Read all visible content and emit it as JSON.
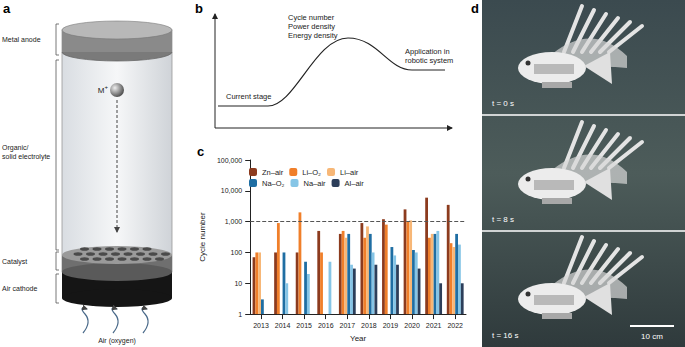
{
  "panel_a": {
    "panel_label": "a",
    "labels": {
      "anode": "Metal anode",
      "electrolyte": [
        "Organic/",
        "solid electrolyte"
      ],
      "catalyst": "Catalyst",
      "cathode": "Air cathode",
      "ion": "M",
      "ion_charge": "+",
      "air": "Air (oxygen)"
    }
  },
  "panel_b": {
    "panel_label": "b",
    "labels": {
      "start": "Current stage",
      "peak": [
        "Cycle number",
        "Power density",
        "Energy density"
      ],
      "end": [
        "Application in",
        "robotic system"
      ]
    }
  },
  "chart_data": {
    "type": "bar",
    "panel_label": "c",
    "x_label": "Year",
    "y_label": "Cycle number",
    "categories": [
      "2013",
      "2014",
      "2015",
      "2016",
      "2017",
      "2018",
      "2019",
      "2020",
      "2021",
      "2022"
    ],
    "log": "y",
    "ylim": [
      1,
      100000
    ],
    "yticks": [
      1,
      10,
      100,
      {
        "value": 1000,
        "label": "1,000"
      },
      {
        "value": 10000,
        "label": "10,000"
      },
      {
        "value": 100000,
        "label": "100,000"
      }
    ],
    "grid": false,
    "legend": "top left",
    "reference_line": 1000,
    "series": [
      {
        "name": "Zn–air",
        "color": "#8c3b1e",
        "values": [
          70,
          100,
          100,
          500,
          400,
          900,
          1200,
          2500,
          6000,
          3500
        ]
      },
      {
        "name": "Li–O₂",
        "color": "#f07f2a",
        "values": [
          100,
          900,
          2000,
          100,
          500,
          300,
          800,
          1000,
          300,
          200
        ]
      },
      {
        "name": "Li–air",
        "color": "#f7b777",
        "values": [
          100,
          null,
          null,
          null,
          300,
          700,
          null,
          1100,
          400,
          150
        ]
      },
      {
        "name": "Na–O₂",
        "color": "#1f6ea3",
        "values": [
          3,
          100,
          50,
          null,
          400,
          400,
          150,
          120,
          400,
          400
        ]
      },
      {
        "name": "Na–air",
        "color": "#86c5e6",
        "values": [
          null,
          10,
          20,
          50,
          40,
          100,
          80,
          100,
          500,
          180
        ]
      },
      {
        "name": "Al–air",
        "color": "#2c3e5a",
        "values": [
          null,
          null,
          null,
          null,
          30,
          40,
          40,
          30,
          10,
          10
        ]
      }
    ]
  },
  "panel_d": {
    "panel_label": "d",
    "times": [
      "t = 0 s",
      "t = 8 s",
      "t = 16 s"
    ],
    "scale_bar": "10 cm"
  }
}
